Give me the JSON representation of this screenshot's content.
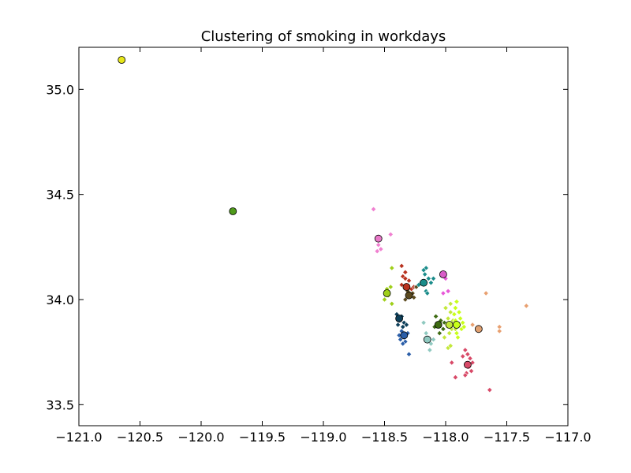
{
  "chart_data": {
    "type": "scatter",
    "title": "Clustering of smoking in workdays",
    "xlabel": "",
    "ylabel": "",
    "xlim": [
      -121.0,
      -117.0
    ],
    "ylim": [
      33.4,
      35.2
    ],
    "xticks": [
      "−121.0",
      "−120.5",
      "−120.0",
      "−119.5",
      "−119.0",
      "−118.5",
      "−118.0",
      "−117.5",
      "−117.0"
    ],
    "xtick_values": [
      -121.0,
      -120.5,
      -120.0,
      -119.5,
      -119.0,
      -118.5,
      -118.0,
      -117.5,
      -117.0
    ],
    "yticks": [
      "33.5",
      "34.0",
      "34.5",
      "35.0"
    ],
    "ytick_values": [
      33.5,
      34.0,
      34.5,
      35.0
    ],
    "grid": false,
    "legend": "none",
    "centroids": [
      {
        "x": -120.65,
        "y": 35.14,
        "color": "#e6e619"
      },
      {
        "x": -119.74,
        "y": 34.42,
        "color": "#4f9a1a"
      },
      {
        "x": -118.55,
        "y": 34.29,
        "color": "#e879c8"
      },
      {
        "x": -118.48,
        "y": 34.03,
        "color": "#9fcf1a"
      },
      {
        "x": -118.32,
        "y": 34.06,
        "color": "#b8321f"
      },
      {
        "x": -118.3,
        "y": 34.02,
        "color": "#5b4a1e"
      },
      {
        "x": -118.18,
        "y": 34.08,
        "color": "#1a8c8a"
      },
      {
        "x": -118.02,
        "y": 34.12,
        "color": "#d85cc8"
      },
      {
        "x": -118.38,
        "y": 33.91,
        "color": "#0d3f5a"
      },
      {
        "x": -118.34,
        "y": 33.83,
        "color": "#2b5ea8"
      },
      {
        "x": -118.15,
        "y": 33.81,
        "color": "#8fc9c0"
      },
      {
        "x": -118.06,
        "y": 33.88,
        "color": "#3e6b12"
      },
      {
        "x": -117.97,
        "y": 33.88,
        "color": "#c3e83a"
      },
      {
        "x": -117.91,
        "y": 33.88,
        "color": "#c8ff1a"
      },
      {
        "x": -117.73,
        "y": 33.86,
        "color": "#e0a070"
      },
      {
        "x": -117.82,
        "y": 33.69,
        "color": "#d84a68"
      }
    ],
    "series": [
      {
        "color": "#f080d0",
        "points": [
          [
            -118.59,
            34.43
          ],
          [
            -118.45,
            34.31
          ],
          [
            -118.55,
            34.26
          ],
          [
            -118.53,
            34.24
          ],
          [
            -118.56,
            34.23
          ]
        ]
      },
      {
        "color": "#9fcf1a",
        "points": [
          [
            -118.45,
            34.06
          ],
          [
            -118.48,
            34.05
          ],
          [
            -118.5,
            34.0
          ],
          [
            -118.47,
            34.02
          ],
          [
            -118.44,
            33.98
          ],
          [
            -118.44,
            34.15
          ]
        ]
      },
      {
        "color": "#b8321f",
        "points": [
          [
            -118.36,
            34.16
          ],
          [
            -118.33,
            34.13
          ],
          [
            -118.35,
            34.11
          ],
          [
            -118.3,
            34.09
          ],
          [
            -118.36,
            34.07
          ],
          [
            -118.28,
            34.05
          ],
          [
            -118.26,
            34.06
          ],
          [
            -118.33,
            34.1
          ]
        ]
      },
      {
        "color": "#5b4a1e",
        "points": [
          [
            -118.31,
            34.04
          ],
          [
            -118.28,
            34.02
          ],
          [
            -118.26,
            34.01
          ],
          [
            -118.33,
            34.0
          ],
          [
            -118.27,
            34.03
          ],
          [
            -118.24,
            34.06
          ]
        ]
      },
      {
        "color": "#1a8c8a",
        "points": [
          [
            -118.16,
            34.15
          ],
          [
            -118.18,
            34.14
          ],
          [
            -118.17,
            34.12
          ],
          [
            -118.14,
            34.1
          ],
          [
            -118.12,
            34.08
          ],
          [
            -118.2,
            34.08
          ],
          [
            -118.16,
            34.04
          ],
          [
            -118.15,
            34.03
          ],
          [
            -118.22,
            34.07
          ],
          [
            -118.1,
            34.1
          ]
        ]
      },
      {
        "color": "#e858d8",
        "points": [
          [
            -118.02,
            34.13
          ],
          [
            -118.0,
            34.1
          ],
          [
            -117.98,
            34.04
          ],
          [
            -118.02,
            34.03
          ]
        ]
      },
      {
        "color": "#0d3f5a",
        "points": [
          [
            -118.4,
            33.93
          ],
          [
            -118.38,
            33.9
          ],
          [
            -118.36,
            33.92
          ],
          [
            -118.34,
            33.89
          ],
          [
            -118.35,
            33.87
          ],
          [
            -118.32,
            33.88
          ],
          [
            -118.39,
            33.88
          ]
        ]
      },
      {
        "color": "#2b5ea8",
        "points": [
          [
            -118.36,
            33.85
          ],
          [
            -118.34,
            33.82
          ],
          [
            -118.33,
            33.8
          ],
          [
            -118.37,
            33.81
          ],
          [
            -118.35,
            33.79
          ],
          [
            -118.31,
            33.84
          ],
          [
            -118.3,
            33.74
          ],
          [
            -118.38,
            33.83
          ]
        ]
      },
      {
        "color": "#8fc9c0",
        "points": [
          [
            -118.18,
            33.89
          ],
          [
            -118.14,
            33.8
          ],
          [
            -118.12,
            33.79
          ],
          [
            -118.13,
            33.76
          ],
          [
            -118.1,
            33.81
          ],
          [
            -118.16,
            33.84
          ]
        ]
      },
      {
        "color": "#3e6b12",
        "points": [
          [
            -118.08,
            33.92
          ],
          [
            -118.04,
            33.9
          ],
          [
            -118.02,
            33.86
          ],
          [
            -118.09,
            33.87
          ],
          [
            -118.01,
            33.89
          ],
          [
            -118.05,
            33.84
          ]
        ]
      },
      {
        "color": "#c3e83a",
        "points": [
          [
            -118.0,
            33.96
          ],
          [
            -117.96,
            33.94
          ],
          [
            -117.98,
            33.91
          ],
          [
            -117.94,
            33.9
          ],
          [
            -117.99,
            33.88
          ],
          [
            -117.95,
            33.86
          ],
          [
            -117.97,
            33.84
          ],
          [
            -117.92,
            33.86
          ],
          [
            -117.96,
            33.98
          ],
          [
            -117.98,
            33.77
          ],
          [
            -117.96,
            33.78
          ],
          [
            -118.01,
            33.82
          ]
        ]
      },
      {
        "color": "#c8ff1a",
        "points": [
          [
            -117.92,
            33.9
          ],
          [
            -117.89,
            33.88
          ],
          [
            -117.87,
            33.86
          ],
          [
            -117.91,
            33.84
          ],
          [
            -117.88,
            33.91
          ],
          [
            -117.86,
            33.89
          ],
          [
            -117.93,
            33.93
          ],
          [
            -117.9,
            33.82
          ],
          [
            -117.92,
            33.96
          ],
          [
            -117.91,
            33.99
          ],
          [
            -117.85,
            33.87
          ],
          [
            -117.89,
            33.94
          ]
        ]
      },
      {
        "color": "#e8a070",
        "points": [
          [
            -117.67,
            34.03
          ],
          [
            -117.34,
            33.97
          ],
          [
            -117.56,
            33.87
          ],
          [
            -117.56,
            33.85
          ],
          [
            -117.78,
            33.88
          ]
        ]
      },
      {
        "color": "#d84a68",
        "points": [
          [
            -117.84,
            33.76
          ],
          [
            -117.82,
            33.74
          ],
          [
            -117.8,
            33.72
          ],
          [
            -117.81,
            33.68
          ],
          [
            -117.78,
            33.7
          ],
          [
            -117.83,
            33.65
          ],
          [
            -117.84,
            33.64
          ],
          [
            -117.64,
            33.57
          ],
          [
            -117.92,
            33.63
          ],
          [
            -117.95,
            33.7
          ],
          [
            -117.86,
            33.73
          ],
          [
            -117.79,
            33.66
          ]
        ]
      }
    ]
  }
}
